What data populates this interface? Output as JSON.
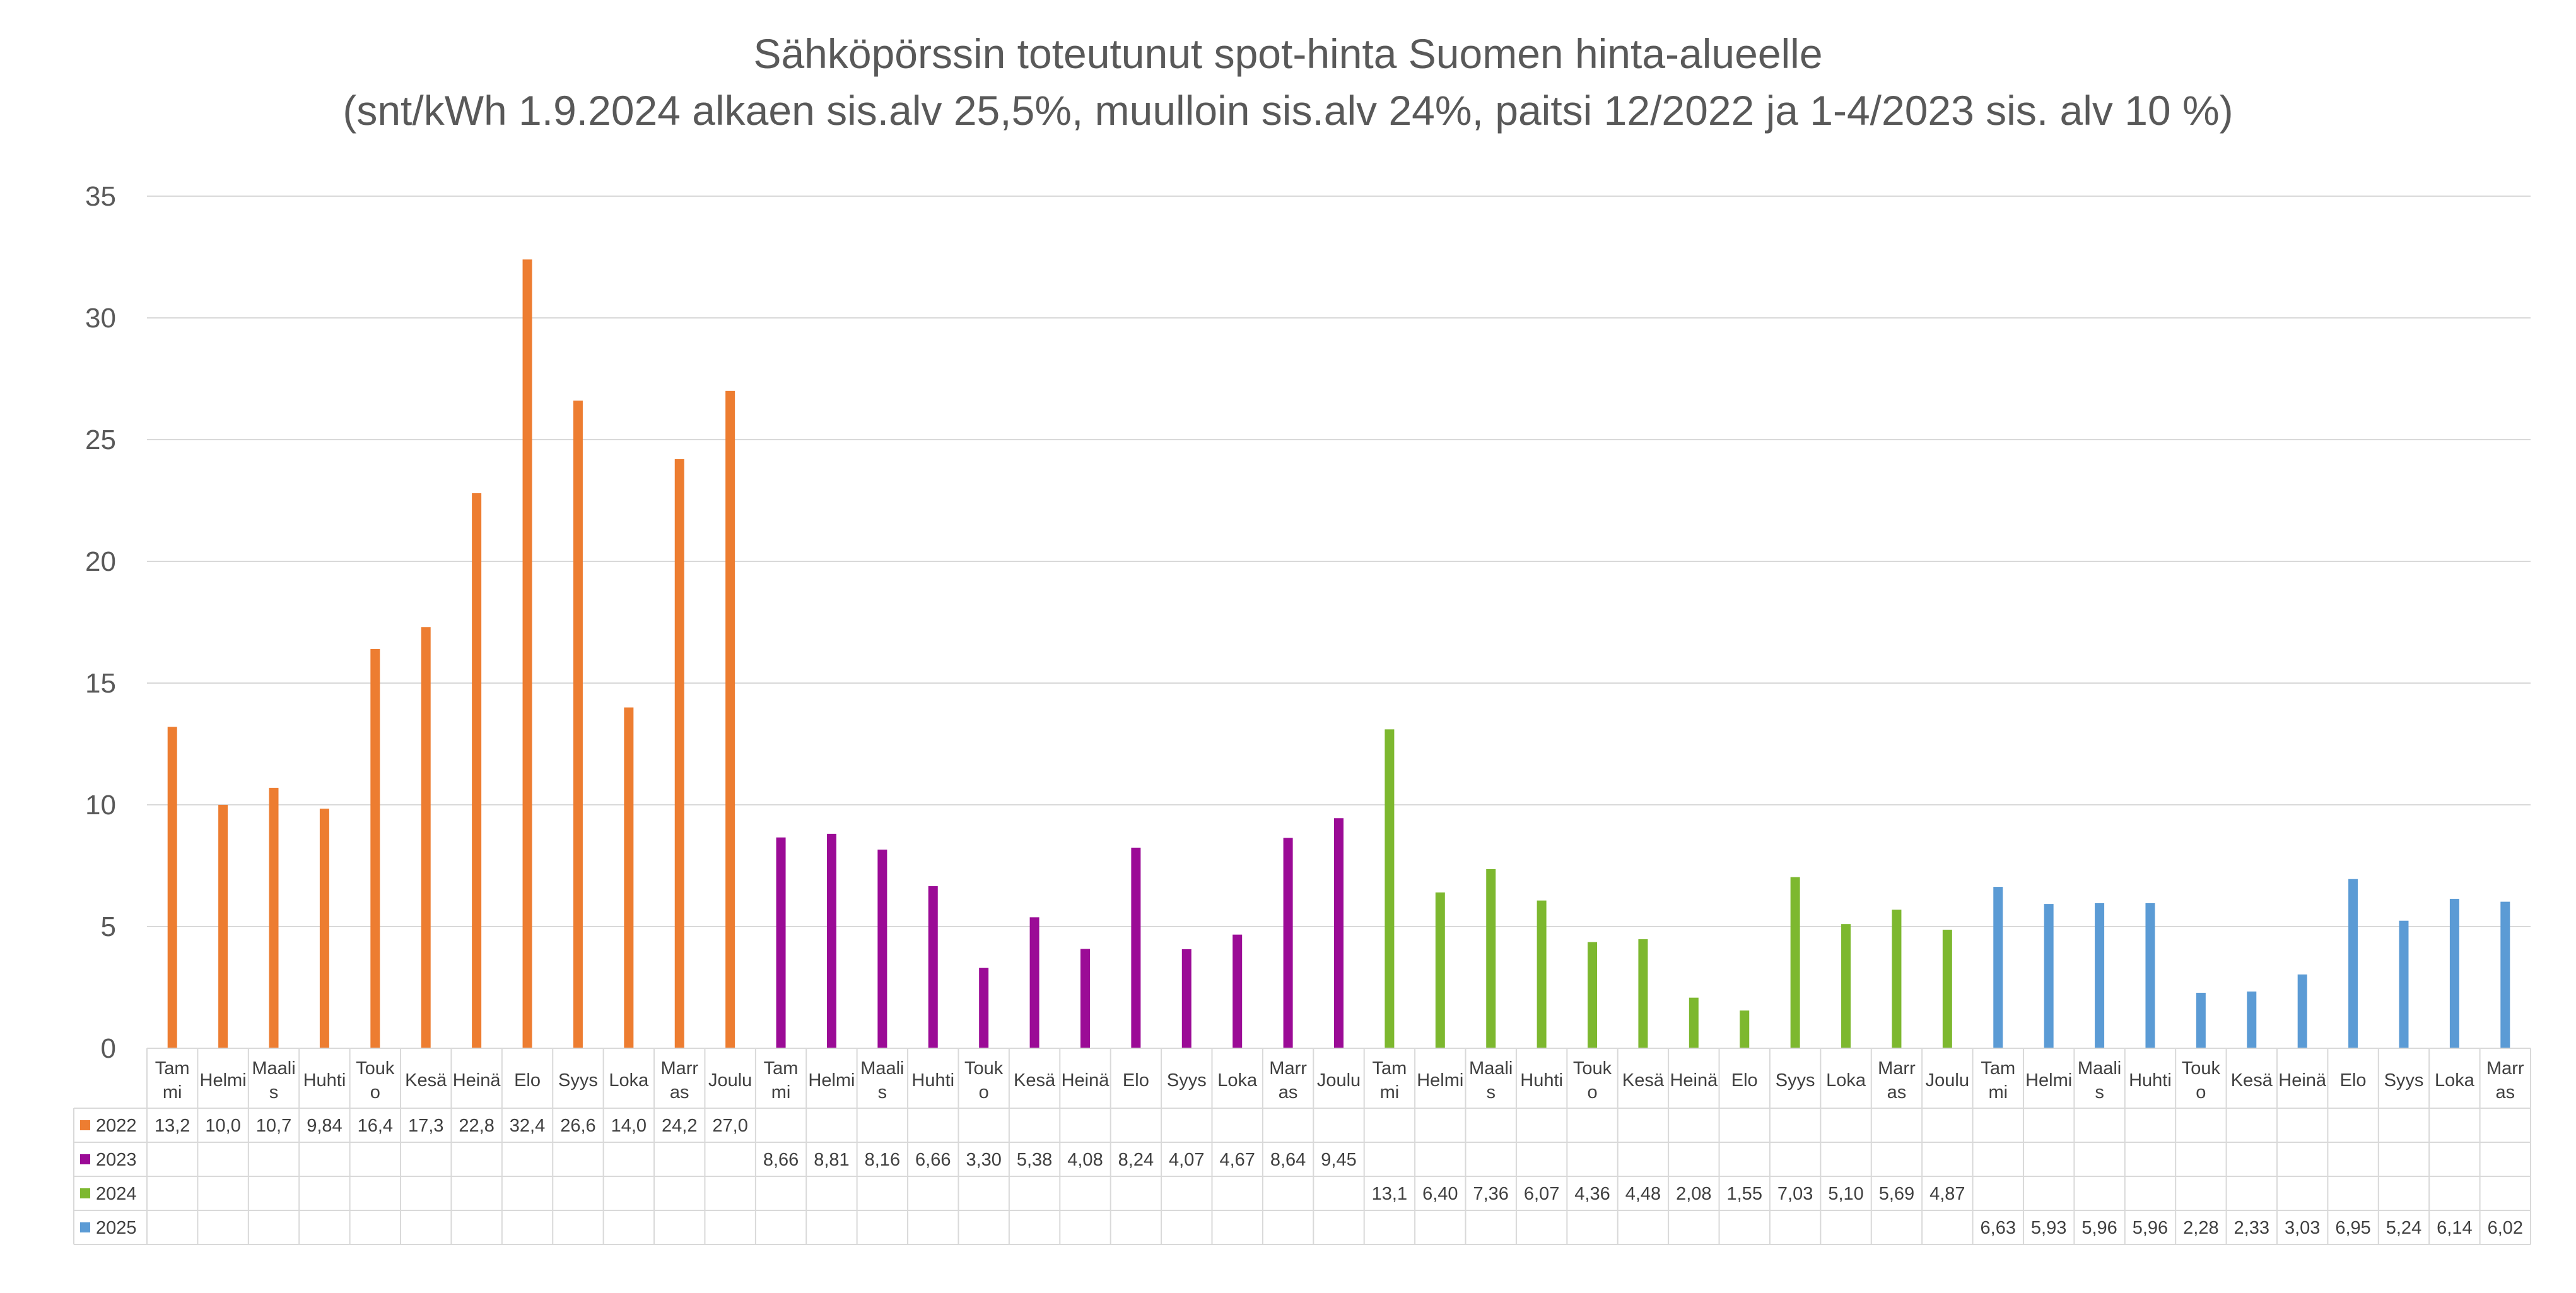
{
  "chart_data": {
    "type": "bar",
    "title": "Sähköpörssin toteutunut spot-hinta Suomen hinta-alueelle",
    "subtitle": "(snt/kWh 1.9.2024 alkaen sis.alv 25,5%, muulloin sis.alv 24%, paitsi 12/2022 ja 1-4/2023 sis. alv 10 %)",
    "ylim": [
      0,
      35
    ],
    "yticks": [
      "0",
      "5",
      "10",
      "15",
      "20",
      "25",
      "30",
      "35"
    ],
    "grid": true,
    "legend": "data-table-left",
    "months": [
      [
        "Tam",
        "mi"
      ],
      [
        "Helmi"
      ],
      [
        "Maali",
        "s"
      ],
      [
        "Huhti"
      ],
      [
        "Touk",
        "o"
      ],
      [
        "Kesä"
      ],
      [
        "Heinä"
      ],
      [
        "Elo"
      ],
      [
        "Syys"
      ],
      [
        "Loka"
      ],
      [
        "Marr",
        "as"
      ],
      [
        "Joulu"
      ]
    ],
    "series": [
      {
        "name": "2022",
        "color": "#ED7D31",
        "values": [
          13.2,
          10.0,
          10.7,
          9.84,
          16.4,
          17.3,
          22.8,
          32.4,
          26.6,
          14.0,
          24.2,
          27.0
        ],
        "labels": [
          "13,2",
          "10,0",
          "10,7",
          "9,84",
          "16,4",
          "17,3",
          "22,8",
          "32,4",
          "26,6",
          "14,0",
          "24,2",
          "27,0"
        ]
      },
      {
        "name": "2023",
        "color": "#9B0B96",
        "values": [
          8.66,
          8.81,
          8.16,
          6.66,
          3.3,
          5.38,
          4.08,
          8.24,
          4.07,
          4.67,
          8.64,
          9.45
        ],
        "labels": [
          "8,66",
          "8,81",
          "8,16",
          "6,66",
          "3,30",
          "5,38",
          "4,08",
          "8,24",
          "4,07",
          "4,67",
          "8,64",
          "9,45"
        ]
      },
      {
        "name": "2024",
        "color": "#7DB82F",
        "values": [
          13.1,
          6.4,
          7.36,
          6.07,
          4.36,
          4.48,
          2.08,
          1.55,
          7.03,
          5.1,
          5.69,
          4.87
        ],
        "labels": [
          "13,1",
          "6,40",
          "7,36",
          "6,07",
          "4,36",
          "4,48",
          "2,08",
          "1,55",
          "7,03",
          "5,10",
          "5,69",
          "4,87"
        ]
      },
      {
        "name": "2025",
        "color": "#5B9BD5",
        "values": [
          6.63,
          5.93,
          5.96,
          5.96,
          2.28,
          2.33,
          3.03,
          6.95,
          5.24,
          6.14,
          6.02
        ],
        "labels": [
          "6,63",
          "5,93",
          "5,96",
          "5,96",
          "2,28",
          "2,33",
          "3,03",
          "6,95",
          "5,24",
          "6,14",
          "6,02"
        ]
      }
    ]
  }
}
